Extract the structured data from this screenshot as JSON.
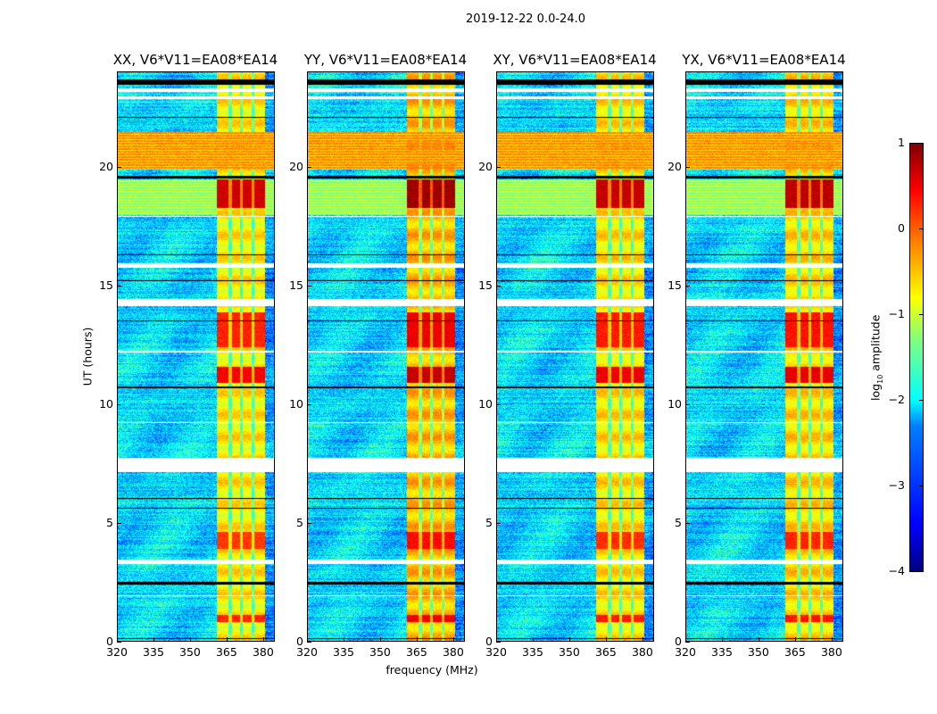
{
  "chart_data": {
    "type": "heatmap",
    "title": "2019-12-22 0.0-24.0",
    "xlabel": "frequency (MHz)",
    "ylabel": "UT (hours)",
    "xlim": [
      320,
      384.8
    ],
    "ylim": [
      0,
      24
    ],
    "xticks": [
      320,
      335,
      350,
      365,
      380
    ],
    "yticks": [
      0,
      5,
      10,
      15,
      20
    ],
    "panels": [
      {
        "title": "XX, V6*V11=EA08*EA14",
        "band_boost": 0.0
      },
      {
        "title": "YY, V6*V11=EA08*EA14",
        "band_boost": 0.25
      },
      {
        "title": "XY, V6*V11=EA08*EA14",
        "band_boost": 0.05
      },
      {
        "title": "YX, V6*V11=EA08*EA14",
        "band_boost": 0.1
      }
    ],
    "colorbar": {
      "label_prefix": "log",
      "label_sub": "10",
      "label_suffix": " amplitude",
      "range": [
        -4,
        1
      ],
      "ticks": [
        "1",
        "0",
        "−1",
        "−2",
        "−3",
        "−4"
      ],
      "tick_values": [
        1,
        0,
        -1,
        -2,
        -3,
        -4
      ],
      "colormap": "jet"
    },
    "features": {
      "background_log_amp": -2.3,
      "rfi_band_mhz": [
        361,
        381
      ],
      "rfi_band_log_amp": -0.8,
      "rfi_gap_channels_mhz": [
        366.5,
        371,
        376
      ],
      "high_rfi_hours": [
        [
          19.9,
          21.5,
          -0.4
        ],
        [
          18.0,
          19.5,
          -1.3
        ]
      ],
      "band_peak_hours": [
        [
          18.3,
          19.5,
          0.6
        ],
        [
          12.4,
          13.9,
          0.2
        ],
        [
          10.9,
          11.6,
          0.4
        ],
        [
          3.9,
          4.6,
          0.1
        ],
        [
          0.8,
          1.1,
          0.2
        ]
      ],
      "flagged_hours_white": [
        [
          7.15,
          7.75
        ],
        [
          14.15,
          14.45
        ],
        [
          15.75,
          15.95
        ],
        [
          3.25,
          3.45
        ],
        [
          23.2,
          23.35
        ],
        [
          22.9,
          23.0
        ],
        [
          9.2,
          9.25
        ],
        [
          12.2,
          12.25
        ],
        [
          17.9,
          17.95
        ],
        [
          1.9,
          1.95
        ]
      ],
      "flagged_hours_black": [
        [
          23.5,
          23.7
        ],
        [
          19.55,
          19.65
        ],
        [
          13.5,
          13.55
        ],
        [
          10.7,
          10.75
        ],
        [
          2.4,
          2.5
        ],
        [
          6.0,
          6.05
        ],
        [
          5.6,
          5.65
        ],
        [
          16.3,
          16.35
        ],
        [
          15.2,
          15.25
        ],
        [
          22.1,
          22.15
        ],
        [
          0.08,
          0.12
        ]
      ]
    }
  }
}
